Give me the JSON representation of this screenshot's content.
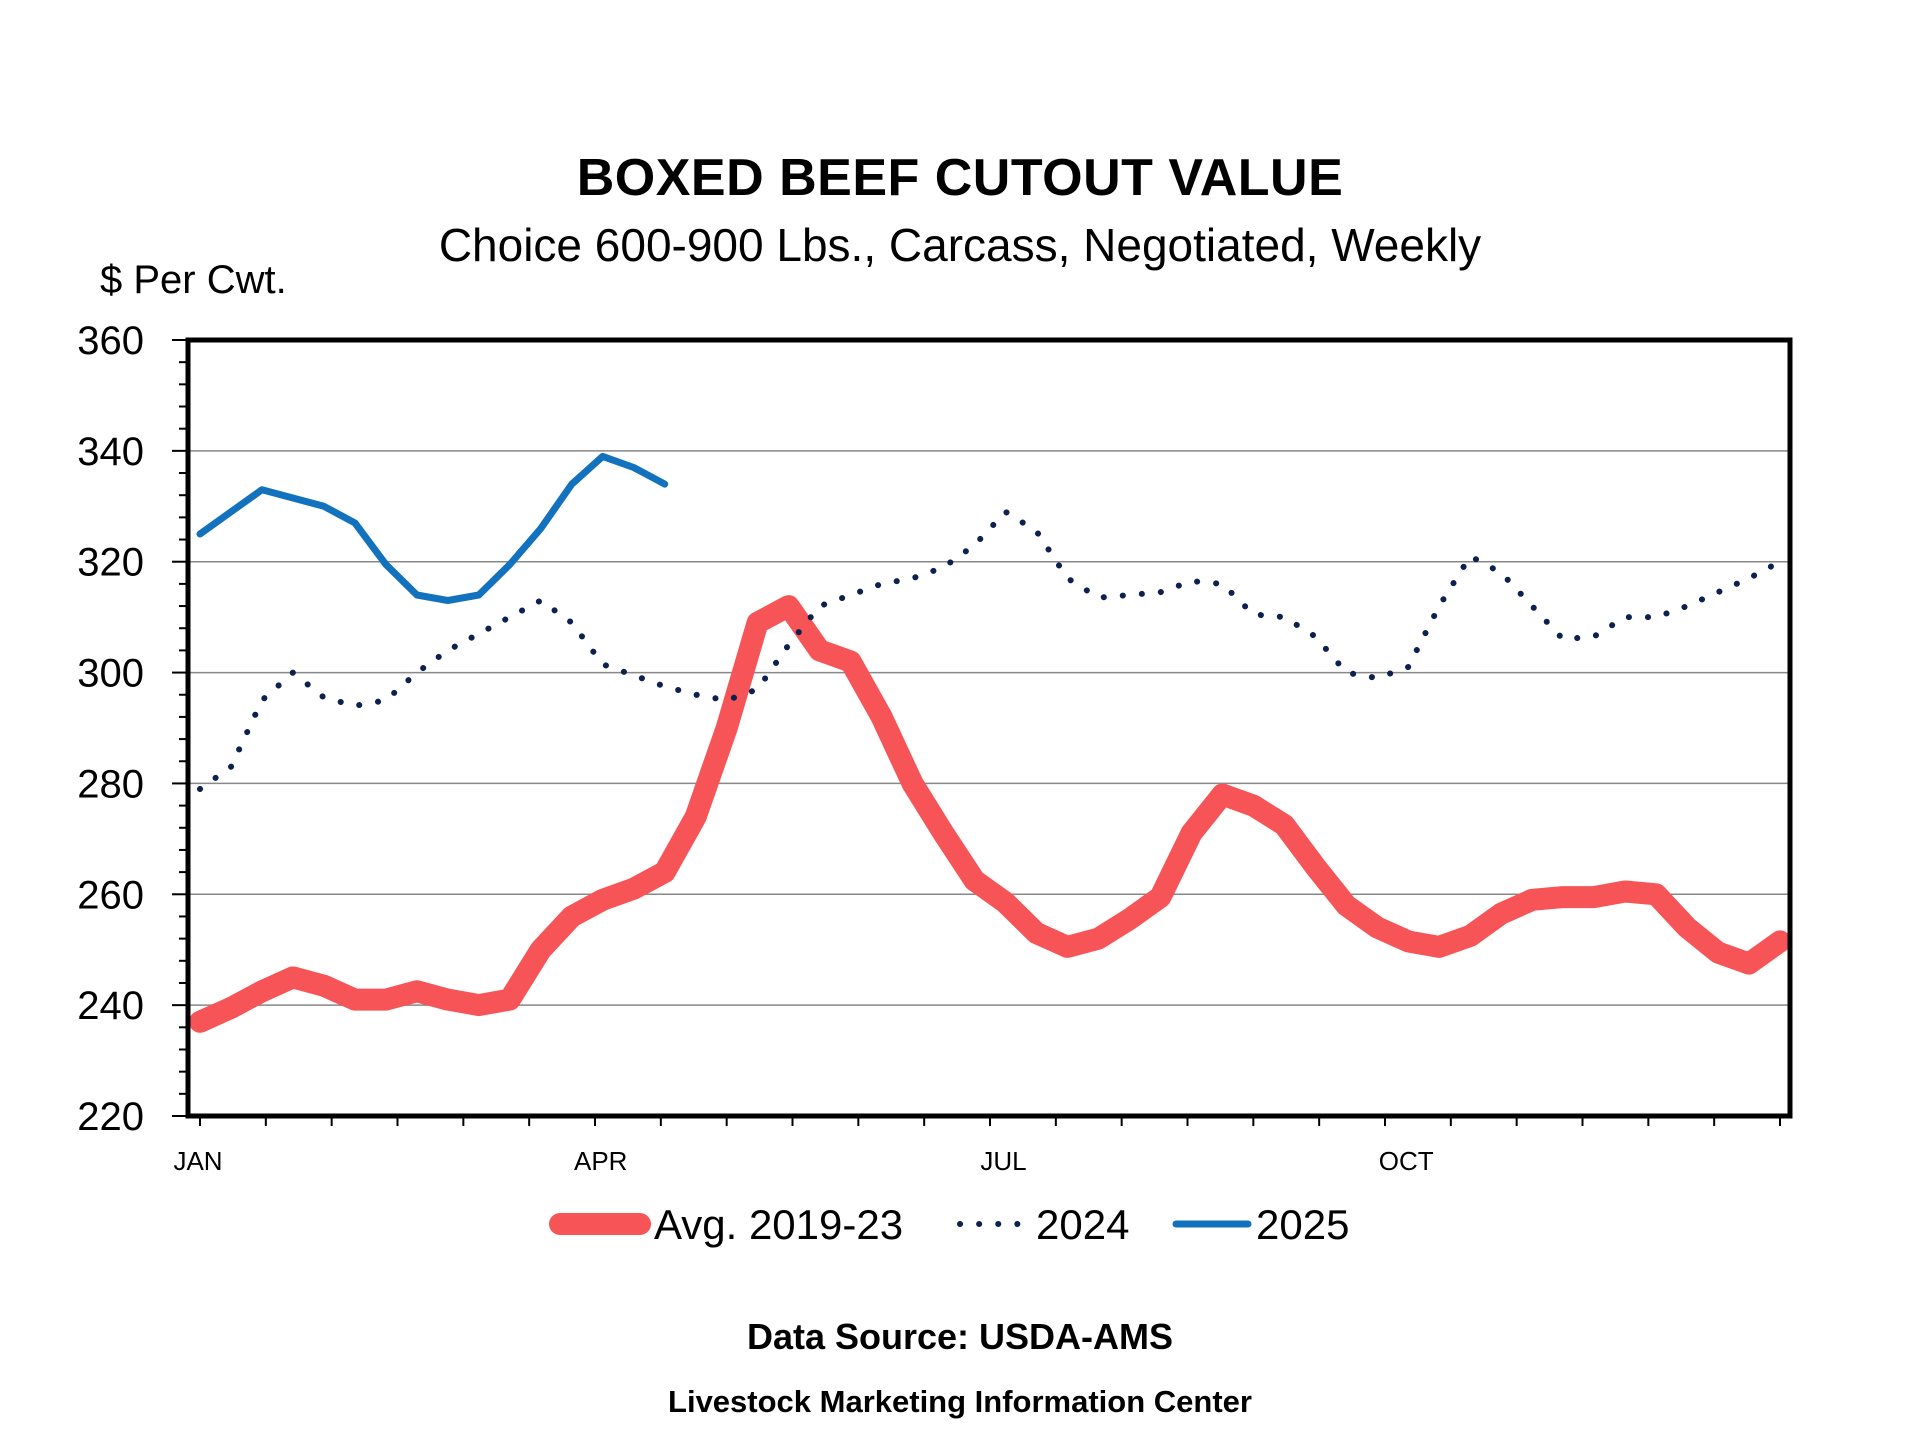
{
  "header": {
    "title": "BOXED BEEF CUTOUT VALUE",
    "subtitle": "Choice 600-900 Lbs., Carcass, Negotiated, Weekly",
    "y_unit": "$ Per Cwt."
  },
  "footer": {
    "source": "Data Source:  USDA-AMS",
    "org": "Livestock Marketing Information Center"
  },
  "colors": {
    "avg": "#f65457",
    "y2024": "#0d2150",
    "y2025": "#1372bd",
    "grid": "#888888",
    "frame": "#000000"
  },
  "chart_data": {
    "type": "line",
    "title": "BOXED BEEF CUTOUT VALUE",
    "subtitle": "Choice 600-900 Lbs., Carcass, Negotiated, Weekly",
    "ylabel": "$ Per Cwt.",
    "xlabel": "",
    "ylim": [
      220,
      360
    ],
    "yticks": [
      220,
      240,
      260,
      280,
      300,
      320,
      340,
      360
    ],
    "xlim": [
      1,
      52
    ],
    "x_labels": [
      {
        "week": 1,
        "label": "JAN"
      },
      {
        "week": 14,
        "label": "APR"
      },
      {
        "week": 27,
        "label": "JUL"
      },
      {
        "week": 40,
        "label": "OCT"
      }
    ],
    "grid": true,
    "legend_position": "bottom",
    "series": [
      {
        "name": "Avg. 2019-23",
        "style": "thick-solid",
        "x": [
          1,
          2,
          3,
          4,
          5,
          6,
          7,
          8,
          9,
          10,
          11,
          12,
          13,
          14,
          15,
          16,
          17,
          18,
          19,
          20,
          21,
          22,
          23,
          24,
          25,
          26,
          27,
          28,
          29,
          30,
          31,
          32,
          33,
          34,
          35,
          36,
          37,
          38,
          39,
          40,
          41,
          42,
          43,
          44,
          45,
          46,
          47,
          48,
          49,
          50,
          51,
          52
        ],
        "values": [
          237,
          239.5,
          242.5,
          245,
          243.5,
          241,
          241,
          242.5,
          241,
          240,
          241,
          250,
          256,
          259,
          261,
          264,
          274,
          290,
          309,
          312,
          304,
          302,
          292,
          280,
          271,
          262.5,
          258.5,
          253,
          250.5,
          252,
          255.5,
          259.5,
          271,
          278,
          276,
          272.5,
          265,
          258,
          254,
          251.5,
          250.5,
          252.5,
          256.5,
          259,
          259.5,
          259.5,
          260.5,
          260,
          254,
          249.5,
          247.5,
          251.5
        ]
      },
      {
        "name": "2024",
        "style": "dotted",
        "x": [
          1,
          2,
          3,
          4,
          5,
          6,
          7,
          8,
          9,
          10,
          11,
          12,
          13,
          14,
          15,
          16,
          17,
          18,
          19,
          20,
          21,
          22,
          23,
          24,
          25,
          26,
          27,
          28,
          29,
          30,
          31,
          32,
          33,
          34,
          35,
          36,
          37,
          38,
          39,
          40,
          41,
          42,
          43,
          44,
          45,
          46,
          47,
          48,
          49,
          50,
          51,
          52
        ],
        "values": [
          279,
          283,
          295,
          300,
          295.5,
          294,
          295,
          300,
          304,
          307,
          310,
          313,
          309,
          301.5,
          299.5,
          297.5,
          296,
          295,
          297,
          305,
          312,
          314,
          316,
          317,
          319,
          323,
          329,
          325.5,
          317,
          313.5,
          314,
          314.5,
          316.5,
          316,
          310.5,
          310,
          306.5,
          300,
          299,
          301,
          312,
          321,
          318,
          312,
          306,
          306.5,
          310,
          310,
          312,
          314.5,
          317,
          320
        ]
      },
      {
        "name": "2025",
        "style": "solid",
        "x": [
          1,
          2,
          3,
          4,
          5,
          6,
          7,
          8,
          9,
          10,
          11,
          12,
          13,
          14,
          15,
          16,
          17
        ],
        "values": [
          325,
          329,
          333,
          331.5,
          330,
          327,
          319.5,
          314,
          313,
          314,
          319.5,
          326,
          334,
          339,
          337,
          334,
          null
        ]
      }
    ]
  }
}
